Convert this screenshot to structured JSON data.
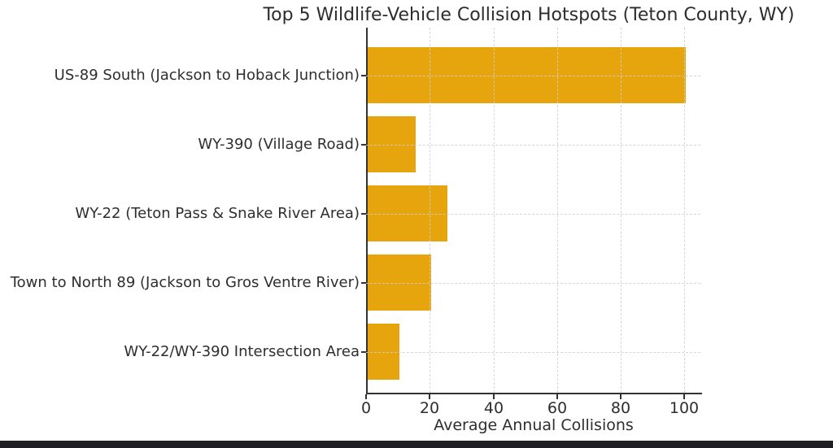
{
  "chart": {
    "title": "Top 5 Wildlife-Vehicle Collision Hotspots (Teton County, WY)",
    "xlabel": "Average Annual Collisions"
  },
  "chart_data": {
    "type": "bar",
    "orientation": "horizontal",
    "title": "Top 5 Wildlife-Vehicle Collision Hotspots (Teton County, WY)",
    "xlabel": "Average Annual Collisions",
    "ylabel": "",
    "categories": [
      "US-89 South (Jackson to Hoback Junction)",
      "WY-390 (Village Road)",
      "WY-22 (Teton Pass & Snake River Area)",
      "Town to North 89 (Jackson to Gros Ventre River)",
      "WY-22/WY-390 Intersection Area"
    ],
    "values": [
      100,
      15,
      25,
      20,
      10
    ],
    "xticks": [
      0,
      20,
      40,
      60,
      80,
      100
    ],
    "xlim": [
      0,
      105
    ],
    "grid": "dashed-both-axes",
    "legend": "none",
    "bar_color": "#E6A50C",
    "colors": {
      "axis": "#333333",
      "grid": "#cfcfcf",
      "text": "#2e2e2e",
      "background": "#ffffff",
      "bottom_strip": "#1f1f23"
    }
  }
}
